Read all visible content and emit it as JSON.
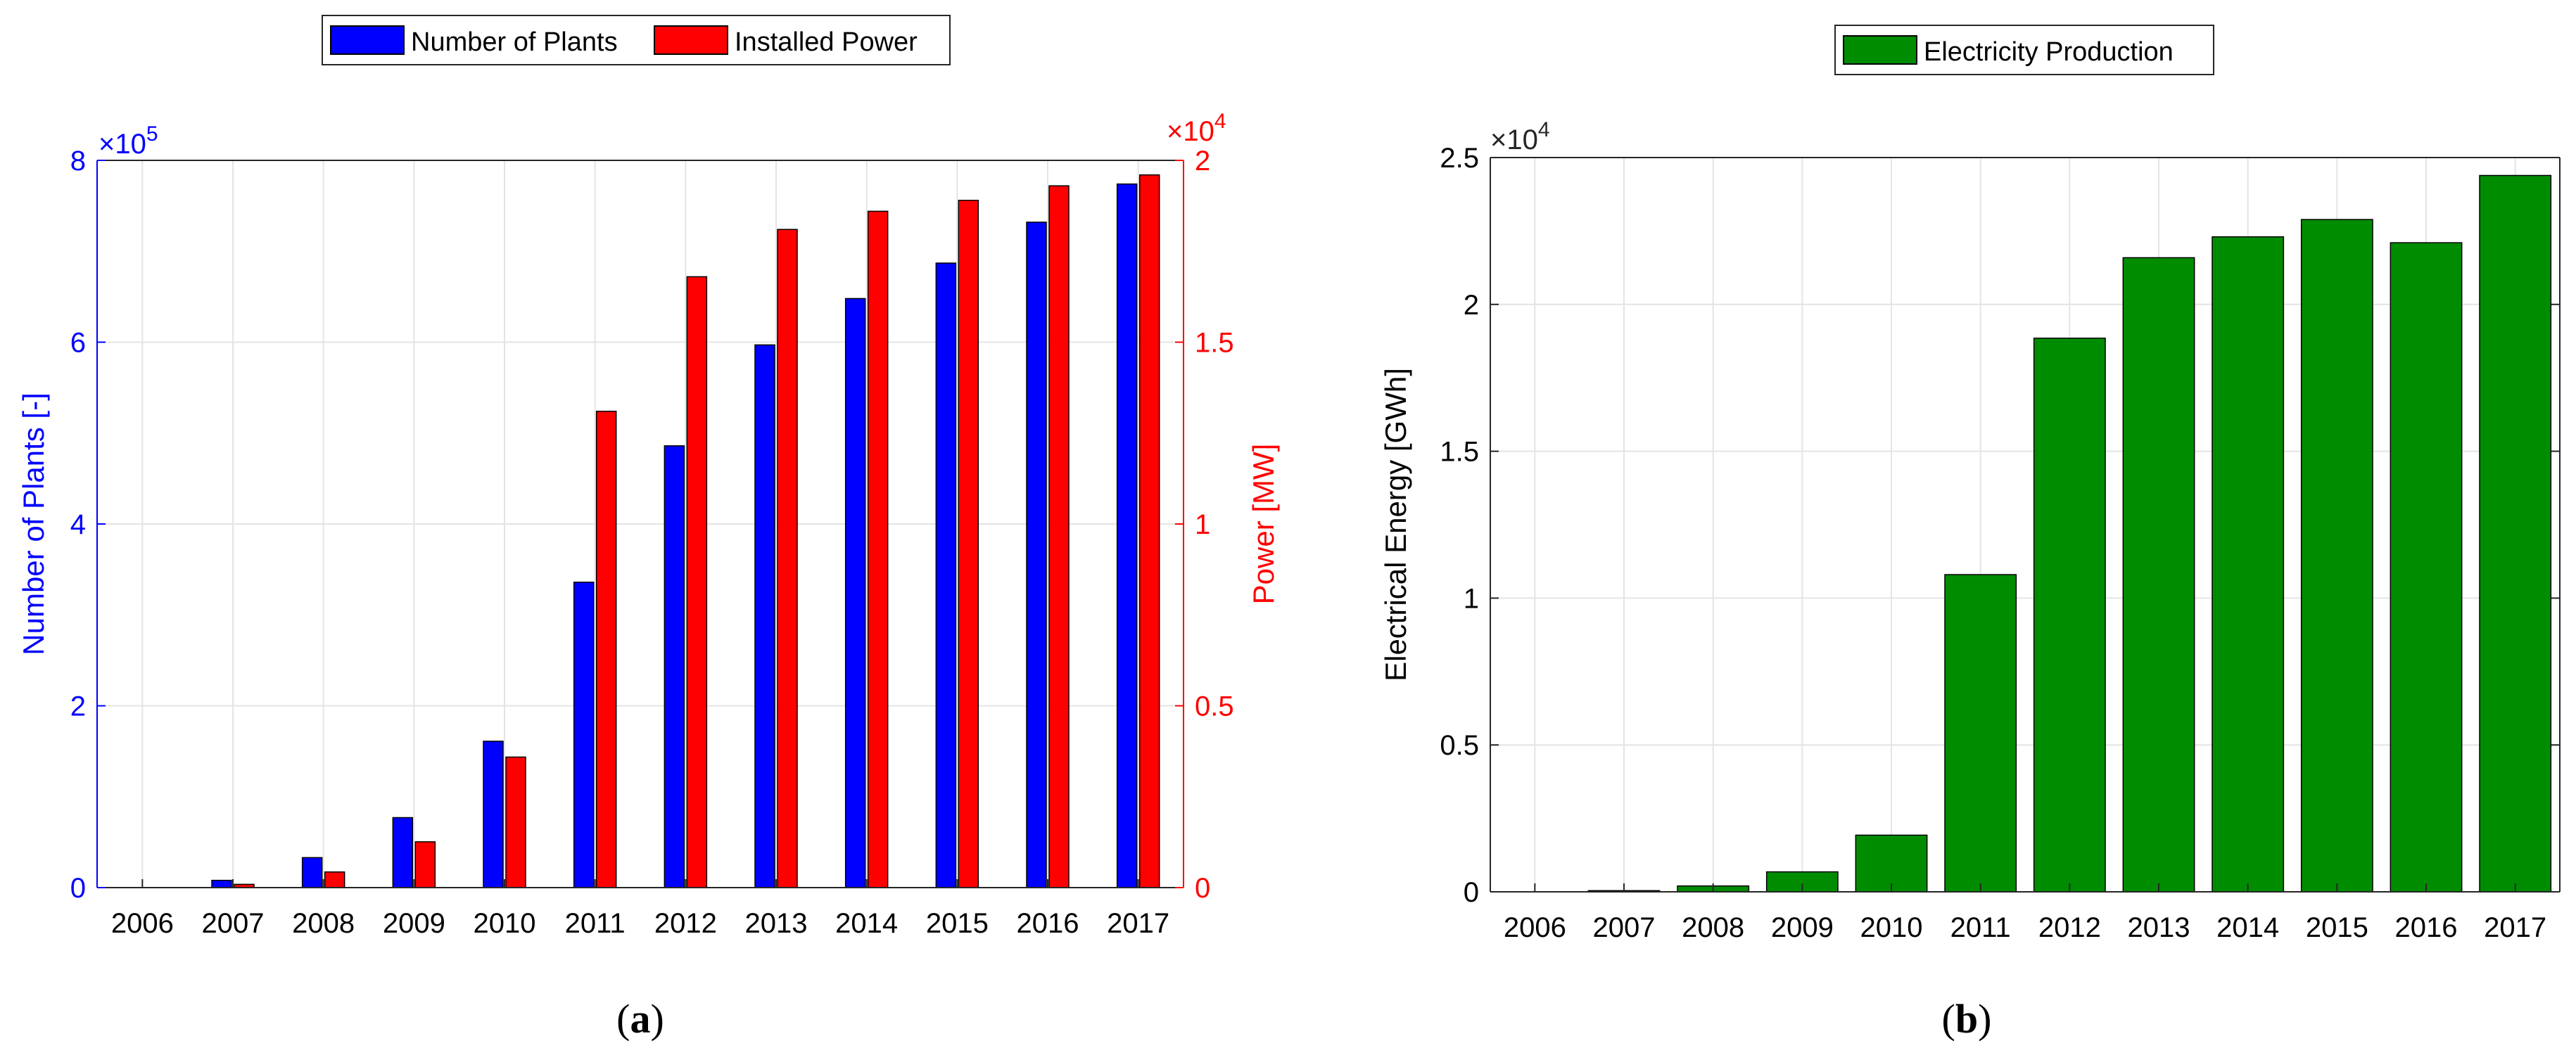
{
  "colors": {
    "plants": "#0000ff",
    "power": "#ff0000",
    "production": "#008c00",
    "grid": "#e4e4e4",
    "axis": "#262626",
    "bar_edge": "#000000"
  },
  "panel_labels": {
    "a": "a",
    "b": "b"
  },
  "chart_data": [
    {
      "type": "bar",
      "title": "",
      "xlabel": "",
      "categories": [
        "2006",
        "2007",
        "2008",
        "2009",
        "2010",
        "2011",
        "2012",
        "2013",
        "2014",
        "2015",
        "2016",
        "2017"
      ],
      "legend": {
        "placement": "top-center",
        "entries": [
          "Number of Plants",
          "Installed Power"
        ]
      },
      "y_left": {
        "label": "Number of Plants [-]",
        "exponent_base": "×10",
        "exponent_power": "5",
        "ylim": [
          0,
          8
        ],
        "ticks": [
          0,
          2,
          4,
          6,
          8
        ],
        "tick_labels": [
          "0",
          "2",
          "4",
          "6",
          "8"
        ]
      },
      "y_right": {
        "label": "Power [MW]",
        "exponent_base": "×10",
        "exponent_power": "4",
        "ylim": [
          0,
          2
        ],
        "ticks": [
          0,
          0.5,
          1,
          1.5,
          2
        ],
        "tick_labels": [
          "0",
          "0.5",
          "1",
          "1.5",
          "2"
        ]
      },
      "grid": true,
      "series": [
        {
          "name": "Number of Plants",
          "axis": "left",
          "values": [
            0,
            0.08,
            0.33,
            0.77,
            1.61,
            3.36,
            4.86,
            5.97,
            6.48,
            6.87,
            7.32,
            7.74
          ]
        },
        {
          "name": "Installed Power",
          "axis": "right",
          "values": [
            0,
            0.009,
            0.043,
            0.126,
            0.359,
            1.31,
            1.68,
            1.81,
            1.86,
            1.89,
            1.93,
            1.96
          ]
        }
      ]
    },
    {
      "type": "bar",
      "title": "",
      "xlabel": "",
      "categories": [
        "2006",
        "2007",
        "2008",
        "2009",
        "2010",
        "2011",
        "2012",
        "2013",
        "2014",
        "2015",
        "2016",
        "2017"
      ],
      "legend": {
        "placement": "top-center",
        "entries": [
          "Electricity Production"
        ]
      },
      "y_left": {
        "label": "Electrical Energy [GWh]",
        "exponent_base": "×10",
        "exponent_power": "4",
        "ylim": [
          0,
          2.5
        ],
        "ticks": [
          0,
          0.5,
          1,
          1.5,
          2,
          2.5
        ],
        "tick_labels": [
          "0",
          "0.5",
          "1",
          "1.5",
          "2",
          "2.5"
        ]
      },
      "grid": true,
      "series": [
        {
          "name": "Electricity Production",
          "axis": "left",
          "values": [
            0,
            0.004,
            0.02,
            0.068,
            0.193,
            1.08,
            1.885,
            2.159,
            2.23,
            2.289,
            2.21,
            2.439
          ]
        }
      ]
    }
  ]
}
